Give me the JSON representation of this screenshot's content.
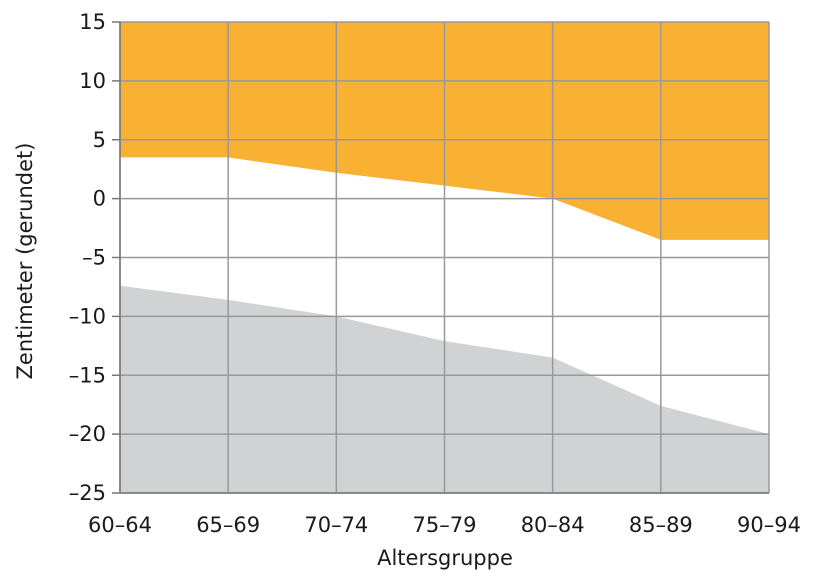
{
  "chart_data": {
    "type": "area",
    "categories": [
      "60–64",
      "65–69",
      "70–74",
      "75–79",
      "80–84",
      "85–89",
      "90–94"
    ],
    "xlabel": "Altersgruppe",
    "ylabel": "Zentimeter (gerundet)",
    "ylim": [
      -25,
      15
    ],
    "yticks": [
      15,
      10,
      5,
      0,
      -5,
      -10,
      -15,
      -20,
      -25
    ],
    "ytick_labels": [
      "15",
      "10",
      "5",
      "0",
      "–5",
      "–10",
      "–15",
      "–20",
      "–25"
    ],
    "grid": true,
    "series": [
      {
        "upper_boundary": [
          3.5,
          3.5,
          2.2,
          1.1,
          0.0,
          -3.5,
          -3.5
        ],
        "color": "#F8B133"
      },
      {
        "upper_boundary": [
          -7.4,
          -8.6,
          -10.0,
          -12.1,
          -13.5,
          -17.6,
          -20.0
        ],
        "color": "#D1D2D4"
      }
    ]
  }
}
